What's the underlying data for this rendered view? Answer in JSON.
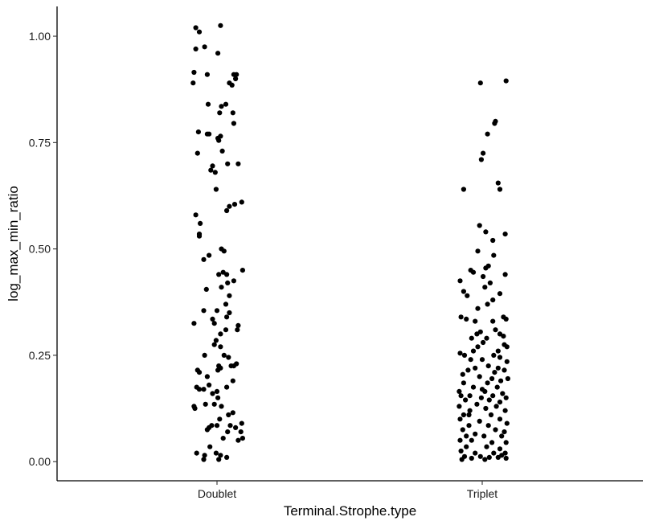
{
  "chart_data": {
    "type": "scatter",
    "subtype": "jitter-strip",
    "xlabel": "Terminal.Strophe.type",
    "ylabel": "log_max_min_ratio",
    "categories": [
      "Doublet",
      "Triplet"
    ],
    "ylim": [
      -0.045,
      1.07
    ],
    "yticks": [
      0.0,
      0.25,
      0.5,
      0.75,
      1.0
    ],
    "ytick_labels": [
      "0.00",
      "0.25",
      "0.50",
      "0.75",
      "1.00"
    ],
    "grid": false,
    "legend": "none",
    "point_color": "#000000",
    "series": [
      {
        "category": "Doublet",
        "points": [
          [
            -0.24,
            1.02
          ],
          [
            -0.2,
            1.01
          ],
          [
            0.04,
            1.025
          ],
          [
            -0.24,
            0.97
          ],
          [
            -0.14,
            0.975
          ],
          [
            0.01,
            0.96
          ],
          [
            -0.26,
            0.915
          ],
          [
            -0.11,
            0.91
          ],
          [
            -0.27,
            0.89
          ],
          [
            0.19,
            0.91
          ],
          [
            0.14,
            0.89
          ],
          [
            0.17,
            0.885
          ],
          [
            0.22,
            0.91
          ],
          [
            0.21,
            0.9
          ],
          [
            -0.1,
            0.84
          ],
          [
            0.05,
            0.835
          ],
          [
            0.1,
            0.84
          ],
          [
            0.03,
            0.82
          ],
          [
            0.18,
            0.82
          ],
          [
            0.19,
            0.795
          ],
          [
            -0.21,
            0.775
          ],
          [
            -0.11,
            0.77
          ],
          [
            -0.09,
            0.77
          ],
          [
            0.01,
            0.76
          ],
          [
            0.04,
            0.765
          ],
          [
            0.02,
            0.755
          ],
          [
            -0.22,
            0.725
          ],
          [
            0.06,
            0.73
          ],
          [
            -0.05,
            0.695
          ],
          [
            -0.07,
            0.685
          ],
          [
            -0.02,
            0.68
          ],
          [
            0.12,
            0.7
          ],
          [
            0.24,
            0.7
          ],
          [
            -0.01,
            0.64
          ],
          [
            0.2,
            0.605
          ],
          [
            0.14,
            0.6
          ],
          [
            0.28,
            0.61
          ],
          [
            0.11,
            0.59
          ],
          [
            -0.24,
            0.58
          ],
          [
            -0.19,
            0.56
          ],
          [
            -0.2,
            0.535
          ],
          [
            -0.2,
            0.53
          ],
          [
            0.05,
            0.5
          ],
          [
            0.08,
            0.495
          ],
          [
            -0.09,
            0.485
          ],
          [
            -0.15,
            0.475
          ],
          [
            0.29,
            0.45
          ],
          [
            0.02,
            0.44
          ],
          [
            0.07,
            0.445
          ],
          [
            0.11,
            0.44
          ],
          [
            0.12,
            0.42
          ],
          [
            0.19,
            0.425
          ],
          [
            0.05,
            0.41
          ],
          [
            -0.12,
            0.405
          ],
          [
            0.14,
            0.39
          ],
          [
            0.1,
            0.37
          ],
          [
            -0.15,
            0.355
          ],
          [
            0.0,
            0.355
          ],
          [
            0.11,
            0.34
          ],
          [
            -0.03,
            0.325
          ],
          [
            0.14,
            0.35
          ],
          [
            -0.26,
            0.325
          ],
          [
            -0.05,
            0.335
          ],
          [
            0.1,
            0.31
          ],
          [
            0.24,
            0.32
          ],
          [
            0.23,
            0.31
          ],
          [
            0.04,
            0.3
          ],
          [
            -0.01,
            0.285
          ],
          [
            -0.03,
            0.275
          ],
          [
            0.04,
            0.27
          ],
          [
            -0.14,
            0.25
          ],
          [
            0.08,
            0.25
          ],
          [
            0.13,
            0.245
          ],
          [
            0.16,
            0.225
          ],
          [
            0.19,
            0.225
          ],
          [
            0.22,
            0.23
          ],
          [
            0.02,
            0.225
          ],
          [
            -0.22,
            0.215
          ],
          [
            -0.2,
            0.21
          ],
          [
            -0.11,
            0.2
          ],
          [
            0.01,
            0.215
          ],
          [
            0.04,
            0.22
          ],
          [
            0.18,
            0.19
          ],
          [
            -0.15,
            0.17
          ],
          [
            -0.23,
            0.175
          ],
          [
            -0.2,
            0.17
          ],
          [
            -0.09,
            0.18
          ],
          [
            0.0,
            0.165
          ],
          [
            0.11,
            0.175
          ],
          [
            -0.05,
            0.16
          ],
          [
            0.01,
            0.15
          ],
          [
            -0.26,
            0.13
          ],
          [
            -0.25,
            0.125
          ],
          [
            -0.13,
            0.135
          ],
          [
            -0.03,
            0.135
          ],
          [
            0.05,
            0.13
          ],
          [
            0.13,
            0.11
          ],
          [
            0.03,
            0.1
          ],
          [
            0.18,
            0.115
          ],
          [
            -0.06,
            0.085
          ],
          [
            -0.09,
            0.08
          ],
          [
            -0.11,
            0.075
          ],
          [
            0.0,
            0.085
          ],
          [
            0.15,
            0.085
          ],
          [
            0.21,
            0.08
          ],
          [
            0.28,
            0.09
          ],
          [
            0.12,
            0.07
          ],
          [
            0.27,
            0.07
          ],
          [
            0.07,
            0.055
          ],
          [
            0.24,
            0.05
          ],
          [
            0.29,
            0.055
          ],
          [
            -0.08,
            0.035
          ],
          [
            -0.23,
            0.02
          ],
          [
            -0.14,
            0.015
          ],
          [
            -0.15,
            0.005
          ],
          [
            -0.01,
            0.02
          ],
          [
            0.04,
            0.015
          ],
          [
            0.02,
            0.005
          ],
          [
            0.11,
            0.01
          ]
        ]
      },
      {
        "category": "Triplet",
        "points": [
          [
            -0.02,
            0.89
          ],
          [
            0.27,
            0.895
          ],
          [
            0.15,
            0.8
          ],
          [
            0.14,
            0.795
          ],
          [
            0.06,
            0.77
          ],
          [
            0.01,
            0.725
          ],
          [
            -0.01,
            0.71
          ],
          [
            -0.21,
            0.64
          ],
          [
            0.18,
            0.655
          ],
          [
            0.2,
            0.64
          ],
          [
            -0.03,
            0.555
          ],
          [
            0.04,
            0.54
          ],
          [
            0.26,
            0.535
          ],
          [
            0.12,
            0.52
          ],
          [
            -0.05,
            0.495
          ],
          [
            0.13,
            0.485
          ],
          [
            0.07,
            0.46
          ],
          [
            0.04,
            0.455
          ],
          [
            -0.13,
            0.45
          ],
          [
            -0.1,
            0.445
          ],
          [
            0.26,
            0.44
          ],
          [
            0.01,
            0.435
          ],
          [
            -0.25,
            0.425
          ],
          [
            0.09,
            0.42
          ],
          [
            0.03,
            0.41
          ],
          [
            -0.21,
            0.4
          ],
          [
            0.2,
            0.395
          ],
          [
            -0.17,
            0.39
          ],
          [
            0.12,
            0.38
          ],
          [
            0.06,
            0.37
          ],
          [
            -0.05,
            0.36
          ],
          [
            0.24,
            0.34
          ],
          [
            -0.24,
            0.34
          ],
          [
            -0.18,
            0.335
          ],
          [
            -0.08,
            0.33
          ],
          [
            0.12,
            0.33
          ],
          [
            0.27,
            0.335
          ],
          [
            0.15,
            0.31
          ],
          [
            -0.02,
            0.305
          ],
          [
            0.2,
            0.3
          ],
          [
            0.24,
            0.295
          ],
          [
            -0.12,
            0.29
          ],
          [
            0.05,
            0.29
          ],
          [
            0.25,
            0.275
          ],
          [
            0.01,
            0.28
          ],
          [
            -0.05,
            0.27
          ],
          [
            -0.1,
            0.26
          ],
          [
            0.28,
            0.27
          ],
          [
            -0.25,
            0.255
          ],
          [
            -0.2,
            0.25
          ],
          [
            0.13,
            0.25
          ],
          [
            0.2,
            0.245
          ],
          [
            -0.13,
            0.24
          ],
          [
            0.0,
            0.24
          ],
          [
            0.28,
            0.235
          ],
          [
            0.07,
            0.225
          ],
          [
            -0.16,
            0.215
          ],
          [
            -0.08,
            0.22
          ],
          [
            0.18,
            0.22
          ],
          [
            0.25,
            0.215
          ],
          [
            -0.22,
            0.205
          ],
          [
            -0.03,
            0.2
          ],
          [
            0.11,
            0.195
          ],
          [
            0.21,
            0.19
          ],
          [
            0.29,
            0.195
          ],
          [
            -0.21,
            0.185
          ],
          [
            0.06,
            0.185
          ],
          [
            -0.1,
            0.175
          ],
          [
            0.17,
            0.175
          ],
          [
            -0.26,
            0.165
          ],
          [
            0.03,
            0.165
          ],
          [
            0.23,
            0.16
          ],
          [
            -0.24,
            0.155
          ],
          [
            -0.14,
            0.155
          ],
          [
            -0.01,
            0.15
          ],
          [
            0.12,
            0.155
          ],
          [
            0.27,
            0.15
          ],
          [
            -0.19,
            0.145
          ],
          [
            0.08,
            0.145
          ],
          [
            0.2,
            0.14
          ],
          [
            -0.26,
            0.13
          ],
          [
            -0.06,
            0.135
          ],
          [
            0.16,
            0.13
          ],
          [
            -0.14,
            0.12
          ],
          [
            0.04,
            0.125
          ],
          [
            0.26,
            0.12
          ],
          [
            -0.21,
            0.11
          ],
          [
            0.1,
            0.11
          ],
          [
            -0.25,
            0.1
          ],
          [
            -0.03,
            0.095
          ],
          [
            0.2,
            0.1
          ],
          [
            0.28,
            0.09
          ],
          [
            -0.15,
            0.085
          ],
          [
            0.07,
            0.085
          ],
          [
            -0.22,
            0.075
          ],
          [
            0.15,
            0.075
          ],
          [
            0.25,
            0.07
          ],
          [
            -0.08,
            0.065
          ],
          [
            0.02,
            0.06
          ],
          [
            0.22,
            0.06
          ],
          [
            -0.25,
            0.05
          ],
          [
            -0.12,
            0.05
          ],
          [
            0.11,
            0.045
          ],
          [
            0.27,
            0.045
          ],
          [
            -0.18,
            0.035
          ],
          [
            0.05,
            0.035
          ],
          [
            0.2,
            0.03
          ],
          [
            -0.24,
            0.025
          ],
          [
            -0.08,
            0.02
          ],
          [
            0.13,
            0.02
          ],
          [
            0.26,
            0.02
          ],
          [
            -0.2,
            0.012
          ],
          [
            -0.02,
            0.012
          ],
          [
            0.08,
            0.01
          ],
          [
            0.18,
            0.01
          ],
          [
            -0.23,
            0.005
          ],
          [
            0.03,
            0.005
          ],
          [
            0.27,
            0.008
          ],
          [
            -0.12,
            0.008
          ],
          [
            0.22,
            0.015
          ],
          [
            -0.15,
            0.11
          ],
          [
            0.0,
            0.17
          ],
          [
            0.14,
            0.21
          ],
          [
            -0.06,
            0.3
          ],
          [
            0.18,
            0.26
          ],
          [
            -0.18,
            0.06
          ]
        ]
      }
    ]
  }
}
